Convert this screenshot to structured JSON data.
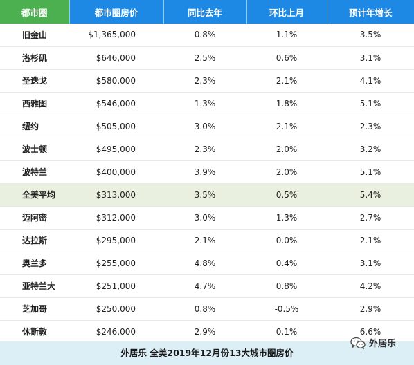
{
  "headers": {
    "city": "都市圈",
    "price": "都市圈房价",
    "yoy": "同比去年",
    "mom": "环比上月",
    "forecast": "预计年增长"
  },
  "rows": [
    {
      "city": "旧金山",
      "price": "$1,365,000",
      "yoy": "0.8%",
      "mom": "1.1%",
      "forecast": "3.5%"
    },
    {
      "city": "洛杉矶",
      "price": "$646,000",
      "yoy": "2.5%",
      "mom": "0.6%",
      "forecast": "3.1%"
    },
    {
      "city": "圣迭戈",
      "price": "$580,000",
      "yoy": "2.3%",
      "mom": "2.1%",
      "forecast": "4.1%"
    },
    {
      "city": "西雅图",
      "price": "$546,000",
      "yoy": "1.3%",
      "mom": "1.8%",
      "forecast": "5.1%"
    },
    {
      "city": "纽约",
      "price": "$505,000",
      "yoy": "3.0%",
      "mom": "2.1%",
      "forecast": "2.3%"
    },
    {
      "city": "波士顿",
      "price": "$495,000",
      "yoy": "2.3%",
      "mom": "2.0%",
      "forecast": "3.2%"
    },
    {
      "city": "波特兰",
      "price": "$400,000",
      "yoy": "3.9%",
      "mom": "2.0%",
      "forecast": "5.1%"
    },
    {
      "city": "全美平均",
      "price": "$313,000",
      "yoy": "3.5%",
      "mom": "0.5%",
      "forecast": "5.4%"
    },
    {
      "city": "迈阿密",
      "price": "$312,000",
      "yoy": "3.0%",
      "mom": "1.3%",
      "forecast": "2.7%"
    },
    {
      "city": "达拉斯",
      "price": "$295,000",
      "yoy": "2.1%",
      "mom": "0.0%",
      "forecast": "2.1%"
    },
    {
      "city": "奥兰多",
      "price": "$255,000",
      "yoy": "4.8%",
      "mom": "0.4%",
      "forecast": "3.1%"
    },
    {
      "city": "亚特兰大",
      "price": "$251,000",
      "yoy": "4.7%",
      "mom": "0.8%",
      "forecast": "4.2%"
    },
    {
      "city": "芝加哥",
      "price": "$250,000",
      "yoy": "0.8%",
      "mom": "-0.5%",
      "forecast": "2.9%"
    },
    {
      "city": "休斯敦",
      "price": "$246,000",
      "yoy": "2.9%",
      "mom": "0.1%",
      "forecast": "6.6%"
    }
  ],
  "caption": "外居乐 全美2019年12月份13大城市圈房价",
  "watermark": {
    "icon": "wechat-icon",
    "text": "外居乐"
  },
  "colors": {
    "header_city": "#4CAF50",
    "header_other": "#1E88E5",
    "average_row": "#EAF0DF",
    "caption_bar": "#DCEFF6"
  }
}
